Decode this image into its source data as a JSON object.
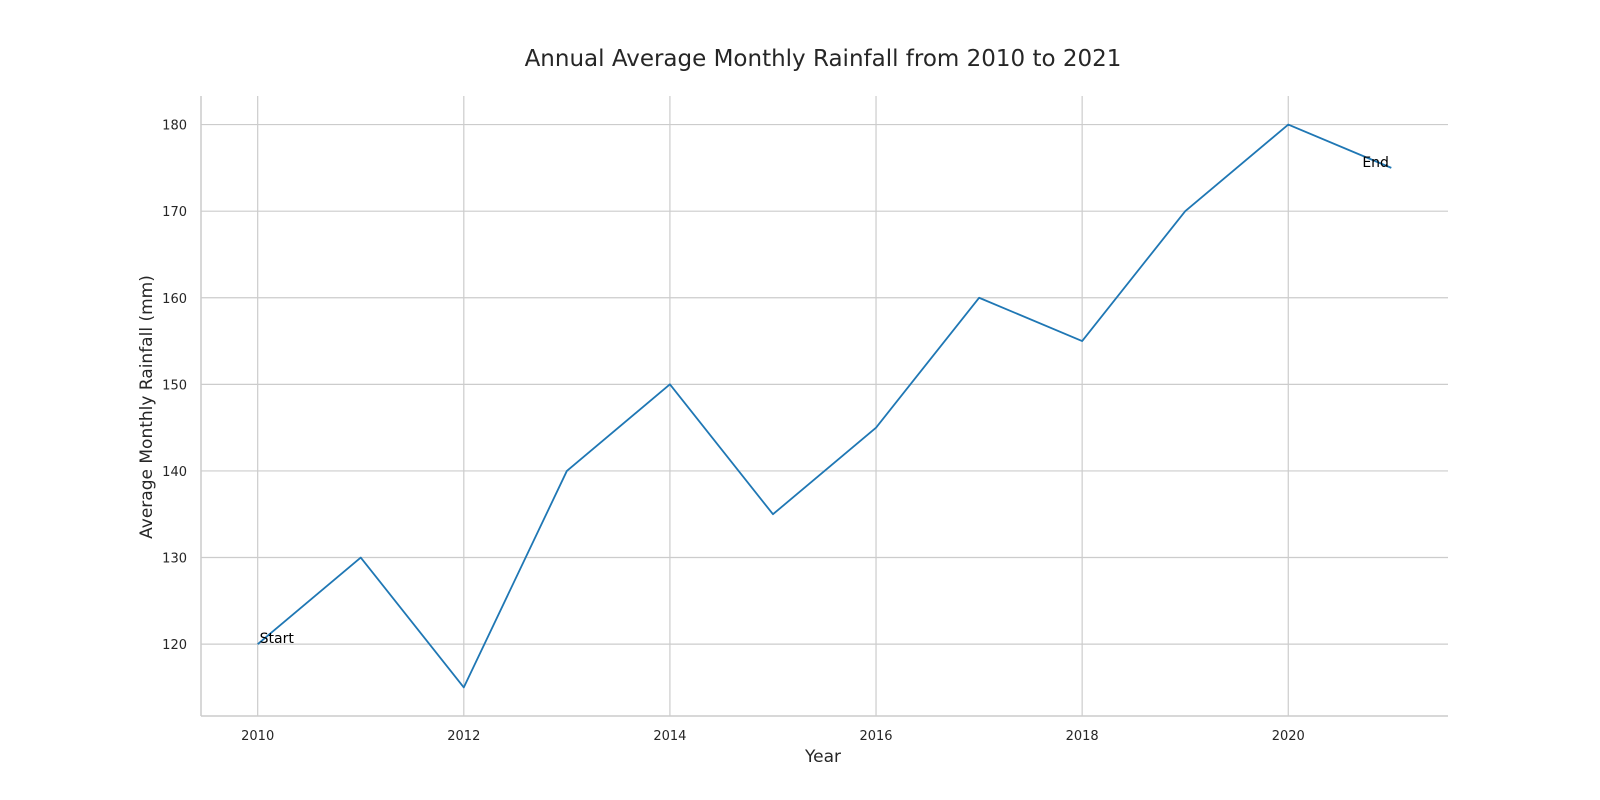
{
  "chart_data": {
    "type": "line",
    "title": "Annual Average Monthly Rainfall from 2010 to 2021",
    "xlabel": "Year",
    "ylabel": "Average Monthly Rainfall (mm)",
    "x": [
      2010,
      2011,
      2012,
      2013,
      2014,
      2015,
      2016,
      2017,
      2018,
      2019,
      2020,
      2021
    ],
    "series": [
      {
        "values": [
          120,
          130,
          115,
          140,
          150,
          135,
          145,
          160,
          155,
          170,
          180,
          175
        ],
        "color": "#1f77b4"
      }
    ],
    "xlim": [
      2009.45,
      2021.55
    ],
    "ylim": [
      111.7,
      183.3
    ],
    "xticks": [
      2010,
      2012,
      2014,
      2016,
      2018,
      2020
    ],
    "yticks": [
      120,
      130,
      140,
      150,
      160,
      170,
      180
    ],
    "grid": true,
    "annotations": [
      {
        "text": "Start",
        "x": 2010,
        "y": 120
      },
      {
        "text": "End",
        "x": 2021,
        "y": 175
      }
    ]
  }
}
